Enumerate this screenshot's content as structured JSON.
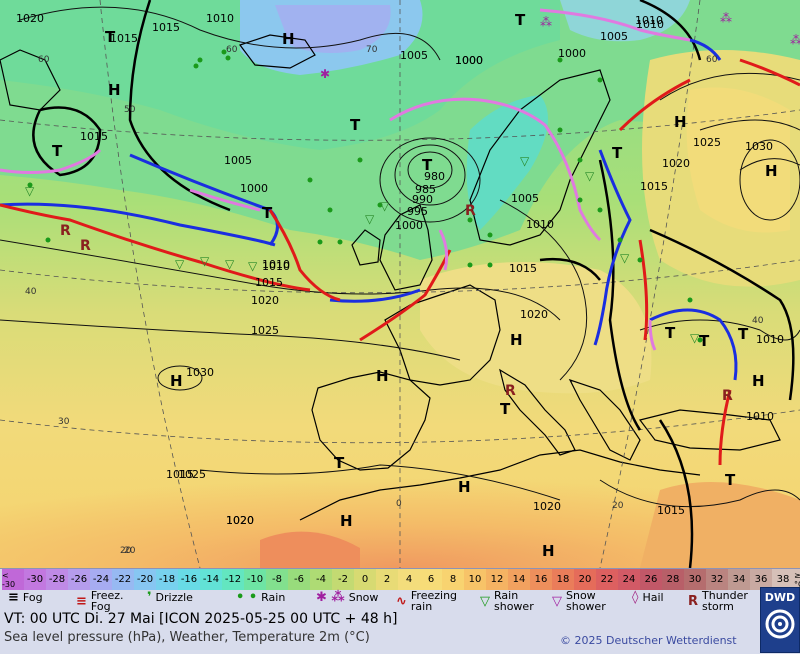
{
  "map": {
    "isobar_labels": [
      {
        "id": "i1",
        "text": "1020"
      },
      {
        "id": "i2",
        "text": "1015"
      },
      {
        "id": "i3",
        "text": "1015"
      },
      {
        "id": "i4",
        "text": "1010"
      },
      {
        "id": "i5",
        "text": "1005"
      },
      {
        "id": "i6",
        "text": "1000"
      },
      {
        "id": "i7",
        "text": "1005"
      },
      {
        "id": "i8",
        "text": "1000"
      },
      {
        "id": "i9",
        "text": "1015"
      },
      {
        "id": "i10",
        "text": "1005"
      },
      {
        "id": "i11",
        "text": "1000"
      },
      {
        "id": "i12",
        "text": "980"
      },
      {
        "id": "i13",
        "text": "985"
      },
      {
        "id": "i14",
        "text": "990"
      },
      {
        "id": "i15",
        "text": "995"
      },
      {
        "id": "i16",
        "text": "1000"
      },
      {
        "id": "i17",
        "text": "1005"
      },
      {
        "id": "i18",
        "text": "1010"
      },
      {
        "id": "i19",
        "text": "1015"
      },
      {
        "id": "i20",
        "text": "1010"
      },
      {
        "id": "i21",
        "text": "1015"
      },
      {
        "id": "i22",
        "text": "1020"
      },
      {
        "id": "i23",
        "text": "1025"
      },
      {
        "id": "i24",
        "text": "1030"
      },
      {
        "id": "i25",
        "text": "1020"
      },
      {
        "id": "i26",
        "text": "1010"
      },
      {
        "id": "i27",
        "text": "1010"
      },
      {
        "id": "i28",
        "text": "1025"
      },
      {
        "id": "i29",
        "text": "1030"
      },
      {
        "id": "i30",
        "text": "1020"
      },
      {
        "id": "i31",
        "text": "1020"
      },
      {
        "id": "i32",
        "text": "1015"
      },
      {
        "id": "i33",
        "text": "1020"
      },
      {
        "id": "i34",
        "text": "1010"
      },
      {
        "id": "i35",
        "text": "1015"
      },
      {
        "id": "i36",
        "text": "1010"
      },
      {
        "id": "i37",
        "text": "1000"
      },
      {
        "id": "i38",
        "text": "1010"
      },
      {
        "id": "i39",
        "text": "1015"
      },
      {
        "id": "i40",
        "text": "1025"
      },
      {
        "id": "i41",
        "text": "1020"
      }
    ],
    "pressure_centers": [
      {
        "id": "p1",
        "text": "T"
      },
      {
        "id": "p2",
        "text": "H"
      },
      {
        "id": "p3",
        "text": "H"
      },
      {
        "id": "p4",
        "text": "T"
      },
      {
        "id": "p5",
        "text": "T"
      },
      {
        "id": "p6",
        "text": "T"
      },
      {
        "id": "p7",
        "text": "T"
      },
      {
        "id": "p8",
        "text": "T"
      },
      {
        "id": "p9",
        "text": "H"
      },
      {
        "id": "p10",
        "text": "H"
      },
      {
        "id": "p11",
        "text": "H"
      },
      {
        "id": "p12",
        "text": "H"
      },
      {
        "id": "p13",
        "text": "T"
      },
      {
        "id": "p14",
        "text": "T"
      },
      {
        "id": "p15",
        "text": "H"
      },
      {
        "id": "p16",
        "text": "T"
      },
      {
        "id": "p17",
        "text": "H"
      },
      {
        "id": "p18",
        "text": "H"
      },
      {
        "id": "p19",
        "text": "H"
      },
      {
        "id": "p20",
        "text": "T"
      },
      {
        "id": "p21",
        "text": "T"
      },
      {
        "id": "p22",
        "text": "T"
      },
      {
        "id": "p23",
        "text": "H"
      },
      {
        "id": "p24",
        "text": "T"
      }
    ],
    "lat_labels": [
      {
        "id": "l1",
        "text": "60"
      },
      {
        "id": "l2",
        "text": "50"
      },
      {
        "id": "l3",
        "text": "40"
      },
      {
        "id": "l4",
        "text": "30"
      },
      {
        "id": "l5",
        "text": "20"
      },
      {
        "id": "l6",
        "text": "60"
      },
      {
        "id": "l7",
        "text": "70"
      },
      {
        "id": "l8",
        "text": "0"
      },
      {
        "id": "l9",
        "text": "20"
      },
      {
        "id": "l10",
        "text": "40"
      },
      {
        "id": "l11",
        "text": "60"
      },
      {
        "id": "l12",
        "text": "20"
      }
    ]
  },
  "temperature_scale": {
    "colors": [
      "#c068d8",
      "#c278e0",
      "#bf8ae6",
      "#b59cec",
      "#a7acf2",
      "#97b9f2",
      "#87c6f2",
      "#77d1ee",
      "#68dbe6",
      "#62e2d6",
      "#63e6c0",
      "#6ee4a4",
      "#82e08e",
      "#98dc7c",
      "#aedb74",
      "#c3da72",
      "#d7da72",
      "#e8db76",
      "#f3dd7c",
      "#f7dc78",
      "#f8d370",
      "#f7c368",
      "#f5b363",
      "#f2a15f",
      "#ee8f5c",
      "#ea7d5a",
      "#e56c5a",
      "#dd6060",
      "#d25a66",
      "#c25868",
      "#b85f68",
      "#b56d6e",
      "#ba8480",
      "#bf9a92",
      "#c9aaa2",
      "#d6c0b8"
    ],
    "labels": [
      "< -30",
      "-30",
      "-28",
      "-26",
      "-24",
      "-22",
      "-20",
      "-18",
      "-16",
      "-14",
      "-12",
      "-10",
      "-8",
      "-6",
      "-4",
      "-2",
      "0",
      "2",
      "4",
      "6",
      "8",
      "10",
      "12",
      "14",
      "16",
      "18",
      "20",
      "22",
      "24",
      "26",
      "28",
      "30",
      "32",
      "34",
      "36",
      "38",
      "≥40 °C"
    ]
  },
  "legend": {
    "fog": "Fog",
    "freez_fog": "Freez. Fog",
    "drizzle": "Drizzle",
    "rain": "Rain",
    "snow": "Snow",
    "freezing_rain": "Freezing rain",
    "rain_shower": "Rain shower",
    "snow_shower": "Snow shower",
    "hail": "Hail",
    "thunderstorm": "Thunder storm"
  },
  "footer": {
    "valid_time": "VT: 00 UTC Di.  27 Mai [ICON 2025-05-25  00 UTC + 48 h]",
    "subtitle": "Sea level pressure (hPa), Weather, Temperature 2m (°C)",
    "copyright": "© 2025 Deutscher Wetterdienst",
    "logo_text": "DWD"
  }
}
